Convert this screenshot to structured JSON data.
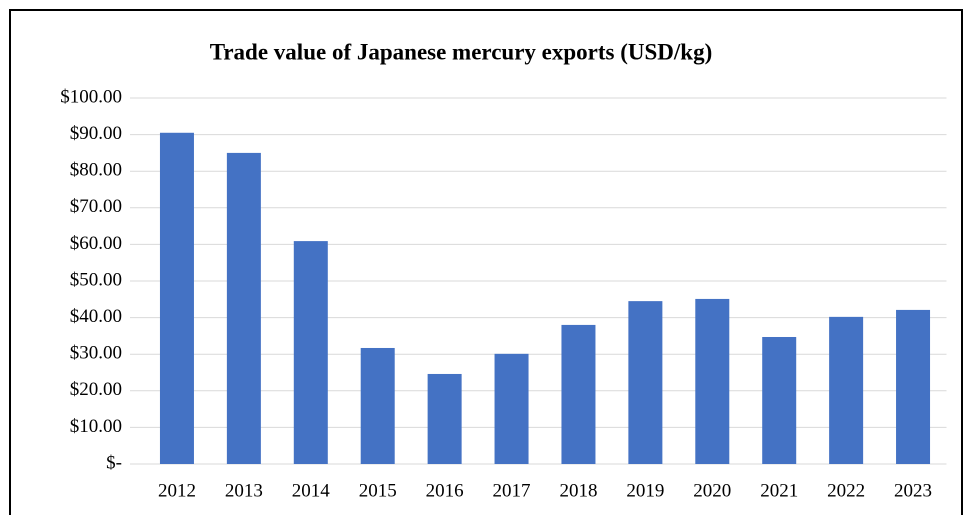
{
  "chart_data": {
    "type": "bar",
    "title": "Trade value of Japanese mercury exports (USD/kg)",
    "categories": [
      "2012",
      "2013",
      "2014",
      "2015",
      "2016",
      "2017",
      "2018",
      "2019",
      "2020",
      "2021",
      "2022",
      "2023"
    ],
    "values": [
      90.5,
      85.0,
      60.9,
      31.7,
      24.6,
      30.1,
      38.0,
      44.5,
      45.1,
      34.7,
      40.2,
      42.1
    ],
    "color": "#4472c4",
    "ylim": [
      0,
      100
    ],
    "yticks": [
      {
        "value": 0,
        "label": "$-"
      },
      {
        "value": 10,
        "label": "$10.00"
      },
      {
        "value": 20,
        "label": "$20.00"
      },
      {
        "value": 30,
        "label": "$30.00"
      },
      {
        "value": 40,
        "label": "$40.00"
      },
      {
        "value": 50,
        "label": "$50.00"
      },
      {
        "value": 60,
        "label": "$60.00"
      },
      {
        "value": 70,
        "label": "$70.00"
      },
      {
        "value": 80,
        "label": "$80.00"
      },
      {
        "value": 90,
        "label": "$90.00"
      },
      {
        "value": 100,
        "label": "$100.00"
      }
    ],
    "grid": true
  }
}
